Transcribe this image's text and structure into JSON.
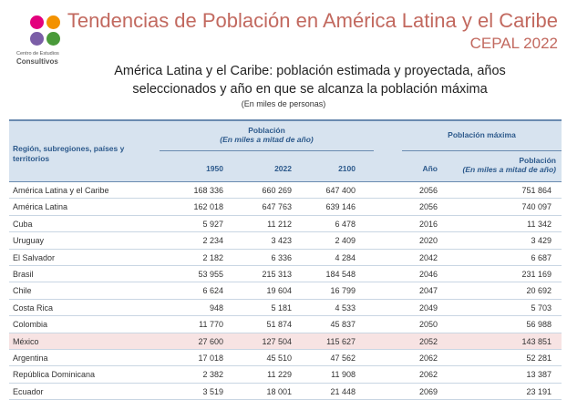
{
  "logo": {
    "line1": "Centro de Estudios",
    "line2": "Consultivos"
  },
  "header": {
    "title": "Tendencias de Población en América Latina y el Caribe",
    "subtitle": "CEPAL 2022"
  },
  "table": {
    "title": "América Latina y el Caribe: población estimada y proyectada, años seleccionados y año en que se alcanza la población máxima",
    "unit": "(En miles de personas)",
    "col_region": "Región, subregiones, países y territorios",
    "col_pob": "Población",
    "col_pob_sub": "(En miles a mitad de año)",
    "col_pmax": "Población máxima",
    "col_1950": "1950",
    "col_2022": "2022",
    "col_2100": "2100",
    "col_ano": "Año",
    "col_pmax_pob": "Población",
    "col_pmax_sub": "(En miles a mitad de año)",
    "rows": [
      {
        "name": "América Latina y el Caribe",
        "y1950": "168 336",
        "y2022": "660 269",
        "y2100": "647 400",
        "ano": "2056",
        "pmax": "751 864"
      },
      {
        "name": "América Latina",
        "y1950": "162 018",
        "y2022": "647 763",
        "y2100": "639 146",
        "ano": "2056",
        "pmax": "740 097"
      },
      {
        "name": "Cuba",
        "y1950": "5 927",
        "y2022": "11 212",
        "y2100": "6 478",
        "ano": "2016",
        "pmax": "11 342"
      },
      {
        "name": "Uruguay",
        "y1950": "2 234",
        "y2022": "3 423",
        "y2100": "2 409",
        "ano": "2020",
        "pmax": "3 429"
      },
      {
        "name": "El Salvador",
        "y1950": "2 182",
        "y2022": "6 336",
        "y2100": "4 284",
        "ano": "2042",
        "pmax": "6 687"
      },
      {
        "name": "Brasil",
        "y1950": "53 955",
        "y2022": "215 313",
        "y2100": "184 548",
        "ano": "2046",
        "pmax": "231 169"
      },
      {
        "name": "Chile",
        "y1950": "6 624",
        "y2022": "19 604",
        "y2100": "16 799",
        "ano": "2047",
        "pmax": "20 692"
      },
      {
        "name": "Costa Rica",
        "y1950": "948",
        "y2022": "5 181",
        "y2100": "4 533",
        "ano": "2049",
        "pmax": "5 703"
      },
      {
        "name": "Colombia",
        "y1950": "11 770",
        "y2022": "51 874",
        "y2100": "45 837",
        "ano": "2050",
        "pmax": "56 988"
      },
      {
        "name": "México",
        "y1950": "27 600",
        "y2022": "127 504",
        "y2100": "115 627",
        "ano": "2052",
        "pmax": "143 851"
      },
      {
        "name": "Argentina",
        "y1950": "17 018",
        "y2022": "45 510",
        "y2100": "47 562",
        "ano": "2062",
        "pmax": "52 281"
      },
      {
        "name": "República Dominicana",
        "y1950": "2 382",
        "y2022": "11 229",
        "y2100": "11 908",
        "ano": "2062",
        "pmax": "13 387"
      },
      {
        "name": "Ecuador",
        "y1950": "3 519",
        "y2022": "18 001",
        "y2100": "21 448",
        "ano": "2069",
        "pmax": "23 191"
      }
    ],
    "highlight_color": "#f7e3e3",
    "header_bg": "#d7e3ef",
    "accent_title_color": "#c2695f"
  }
}
